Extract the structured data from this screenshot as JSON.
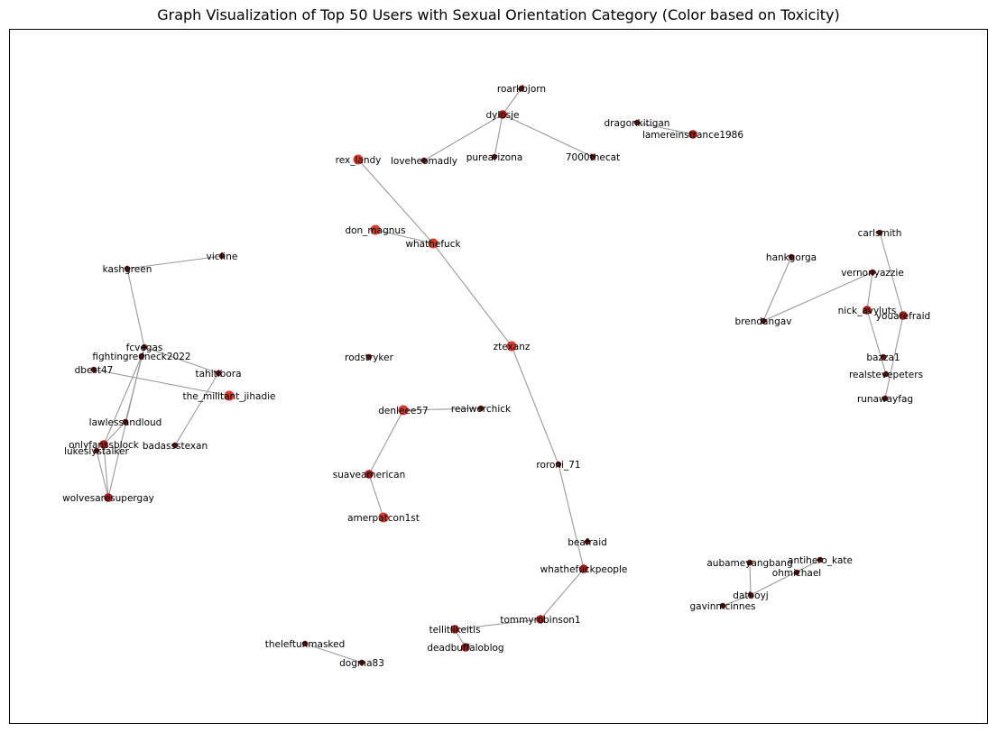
{
  "title": "Graph Visualization of Top 50 Users with Sexual Orientation Category (Color based on Toxicity)",
  "colors": {
    "edge": "#999999",
    "frame": "#000000",
    "high": "#d73a2e",
    "mid": "#9e1b1b",
    "low": "#5a0f0f"
  },
  "nodes": [
    {
      "id": "roarkbjorn",
      "tox": "low"
    },
    {
      "id": "dylosje",
      "tox": "mid"
    },
    {
      "id": "dragonkitigan",
      "tox": "low"
    },
    {
      "id": "lamereinstrance1986",
      "tox": "mid"
    },
    {
      "id": "rex_landy",
      "tox": "high"
    },
    {
      "id": "loveheomadly",
      "tox": "low"
    },
    {
      "id": "purearizona",
      "tox": "low"
    },
    {
      "id": "7000thecat",
      "tox": "low"
    },
    {
      "id": "don_magnus",
      "tox": "high"
    },
    {
      "id": "whathefuck",
      "tox": "high"
    },
    {
      "id": "carlsmith",
      "tox": "low"
    },
    {
      "id": "vicfine",
      "tox": "low"
    },
    {
      "id": "hankgorga",
      "tox": "low"
    },
    {
      "id": "kashgreen",
      "tox": "low"
    },
    {
      "id": "vernonyazzie",
      "tox": "low"
    },
    {
      "id": "nick_avyluts",
      "tox": "mid"
    },
    {
      "id": "youarefraid",
      "tox": "mid"
    },
    {
      "id": "brendangav",
      "tox": "low"
    },
    {
      "id": "fcvegas",
      "tox": "low"
    },
    {
      "id": "ztexanz",
      "tox": "high"
    },
    {
      "id": "fightingredneck2022",
      "tox": "low"
    },
    {
      "id": "rodstryker",
      "tox": "low"
    },
    {
      "id": "bazza1",
      "tox": "low"
    },
    {
      "id": "dbest47",
      "tox": "low"
    },
    {
      "id": "tahitibora",
      "tox": "low"
    },
    {
      "id": "realstevepeters",
      "tox": "low"
    },
    {
      "id": "the_militant_jihadie",
      "tox": "high"
    },
    {
      "id": "runawayfag",
      "tox": "low"
    },
    {
      "id": "denleee57",
      "tox": "high"
    },
    {
      "id": "realworchick",
      "tox": "low"
    },
    {
      "id": "lawlessandloud",
      "tox": "low"
    },
    {
      "id": "onlyfanssblock",
      "tox": "mid"
    },
    {
      "id": "badassstexan",
      "tox": "low"
    },
    {
      "id": "lukeslystalker",
      "tox": "low"
    },
    {
      "id": "roroni_71",
      "tox": "low"
    },
    {
      "id": "suaveamerican",
      "tox": "mid"
    },
    {
      "id": "wolvesaresupergay",
      "tox": "mid"
    },
    {
      "id": "amerpatcon1st",
      "tox": "high"
    },
    {
      "id": "beafraid",
      "tox": "low"
    },
    {
      "id": "antihero_kate",
      "tox": "low"
    },
    {
      "id": "aubameyangbang",
      "tox": "low"
    },
    {
      "id": "whathefuckpeople",
      "tox": "mid"
    },
    {
      "id": "ohmichael",
      "tox": "low"
    },
    {
      "id": "datboyj",
      "tox": "low"
    },
    {
      "id": "gavinmcinnes",
      "tox": "low"
    },
    {
      "id": "tommyrobinson1",
      "tox": "mid"
    },
    {
      "id": "tellitlikeitis",
      "tox": "mid"
    },
    {
      "id": "deadbuffaloblog",
      "tox": "mid"
    },
    {
      "id": "theleftunmasked",
      "tox": "low"
    },
    {
      "id": "dogma83",
      "tox": "low"
    }
  ],
  "edges": [
    [
      "roarkbjorn",
      "dylosje"
    ],
    [
      "dylosje",
      "loveheomadly"
    ],
    [
      "dylosje",
      "purearizona"
    ],
    [
      "dylosje",
      "7000thecat"
    ],
    [
      "dragonkitigan",
      "lamereinstrance1986"
    ],
    [
      "rex_landy",
      "whathefuck"
    ],
    [
      "don_magnus",
      "whathefuck"
    ],
    [
      "whathefuck",
      "ztexanz"
    ],
    [
      "ztexanz",
      "roroni_71"
    ],
    [
      "roroni_71",
      "whathefuckpeople"
    ],
    [
      "whathefuckpeople",
      "tommyrobinson1"
    ],
    [
      "tommyrobinson1",
      "tellitlikeitis"
    ],
    [
      "tellitlikeitis",
      "deadbuffaloblog"
    ],
    [
      "vicfine",
      "kashgreen"
    ],
    [
      "kashgreen",
      "fcvegas"
    ],
    [
      "fcvegas",
      "tahitibora"
    ],
    [
      "fcvegas",
      "lawlessandloud"
    ],
    [
      "fightingredneck2022",
      "onlyfanssblock"
    ],
    [
      "fightingredneck2022",
      "wolvesaresupergay"
    ],
    [
      "dbest47",
      "the_militant_jihadie"
    ],
    [
      "tahitibora",
      "badassstexan"
    ],
    [
      "lawlessandloud",
      "onlyfanssblock"
    ],
    [
      "onlyfanssblock",
      "wolvesaresupergay"
    ],
    [
      "lukeslystalker",
      "wolvesaresupergay"
    ],
    [
      "denleee57",
      "realworchick"
    ],
    [
      "denleee57",
      "suaveamerican"
    ],
    [
      "suaveamerican",
      "amerpatcon1st"
    ],
    [
      "hankgorga",
      "brendangav"
    ],
    [
      "brendangav",
      "vernonyazzie"
    ],
    [
      "vernonyazzie",
      "nick_avyluts"
    ],
    [
      "carlsmith",
      "youarefraid"
    ],
    [
      "nick_avyluts",
      "realstevepeters"
    ],
    [
      "youarefraid",
      "runawayfag"
    ],
    [
      "aubameyangbang",
      "datboyj"
    ],
    [
      "antihero_kate",
      "datboyj"
    ],
    [
      "datboyj",
      "gavinmcinnes"
    ],
    [
      "theleftunmasked",
      "dogma83"
    ]
  ]
}
